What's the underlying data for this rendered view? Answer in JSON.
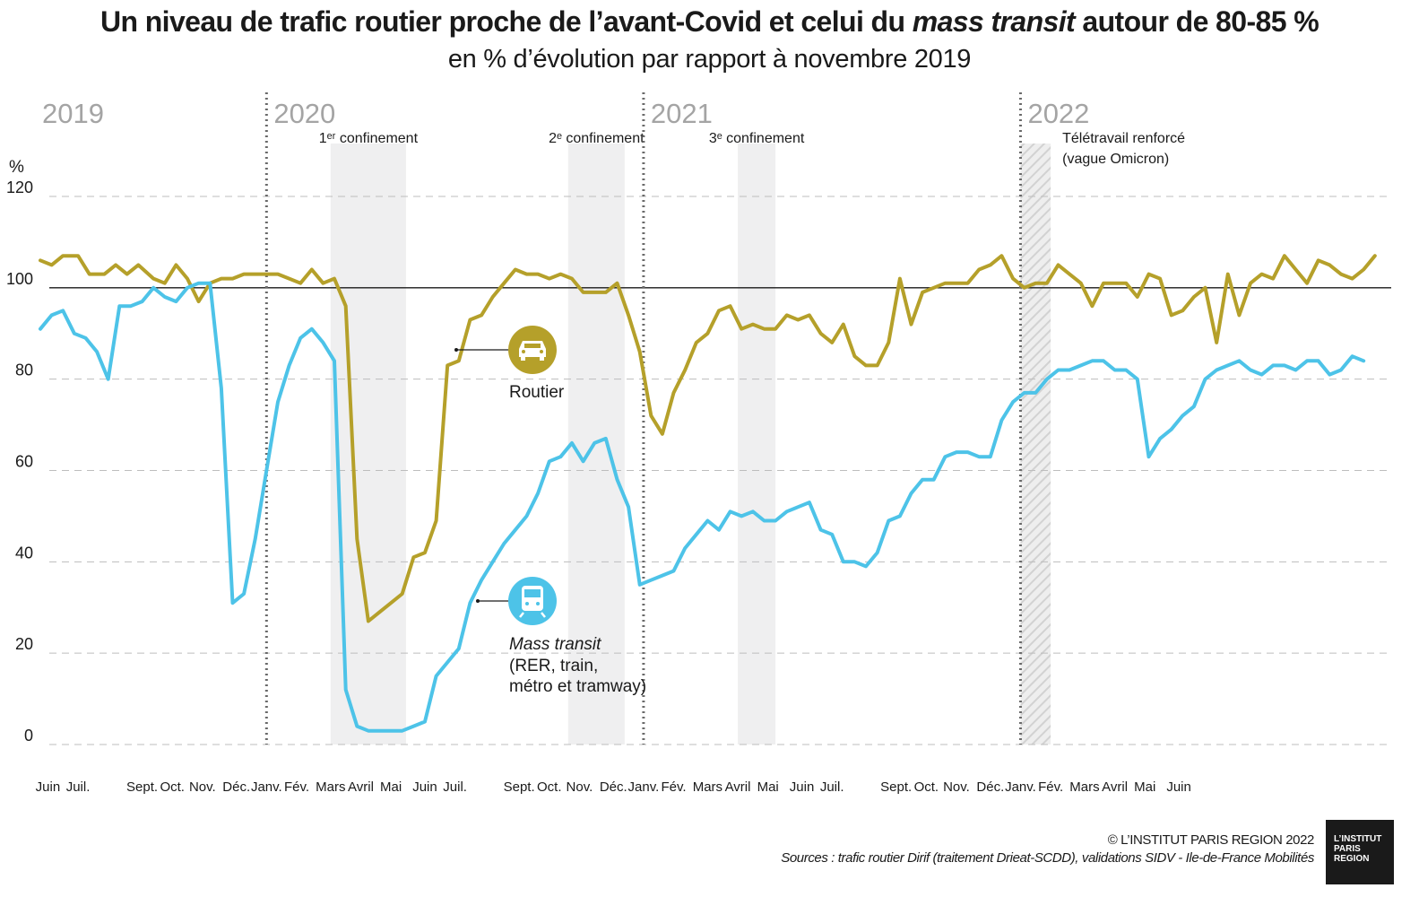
{
  "title": {
    "part1": "Un niveau de trafic routier proche de l’avant-Covid et celui du ",
    "italic": "mass transit",
    "part2": " autour de 80-85 %"
  },
  "subtitle": "en % d’évolution par rapport à novembre 2019",
  "unit_label": "%",
  "years": [
    "2019",
    "2020",
    "2021",
    "2022"
  ],
  "periods": [
    {
      "label": "1ᵉʳ confinement",
      "start": 2020.17,
      "end": 2020.37,
      "hatched": false
    },
    {
      "label": "2ᵉ confinement",
      "start": 2020.8,
      "end": 2020.95,
      "hatched": false
    },
    {
      "label": "3ᵉ confinement",
      "start": 2021.25,
      "end": 2021.35,
      "hatched": false
    },
    {
      "label": "Télétravail renforcé\n(vague Omicron)",
      "start": 2022.0,
      "end": 2022.08,
      "hatched": true
    }
  ],
  "legend": {
    "road": {
      "label": "Routier",
      "icon": "car-icon",
      "color": "#b5a02a"
    },
    "transit": {
      "label": "Mass transit",
      "sublabel1": "(RER, train,",
      "sublabel2": "métro et tramway)",
      "icon": "train-icon",
      "color": "#4dc3e8"
    }
  },
  "credit": "© L’INSTITUT PARIS REGION 2022",
  "sources": "Sources : trafic routier Dirif (traitement Drieat-SCDD), validations SIDV - Ile-de-France Mobilités",
  "logo": [
    "L’INSTITUT",
    "PARIS",
    "REGION"
  ],
  "chart_data": {
    "type": "line",
    "title": "Un niveau de trafic routier proche de l’avant-Covid et celui du mass transit autour de 80-85 %",
    "subtitle": "en % d’évolution par rapport à novembre 2019",
    "ylabel": "%",
    "ylim": [
      0,
      120
    ],
    "yticks": [
      0,
      20,
      40,
      60,
      80,
      100,
      120
    ],
    "reference_line": 100,
    "grid": "horizontal dashed",
    "month_ticks": [
      {
        "label": "Juin",
        "t": 2019.42
      },
      {
        "label": "Juil.",
        "t": 2019.5
      },
      {
        "label": "Sept.",
        "t": 2019.67
      },
      {
        "label": "Oct.",
        "t": 2019.75
      },
      {
        "label": "Nov.",
        "t": 2019.83
      },
      {
        "label": "Déc.",
        "t": 2019.92
      },
      {
        "label": "Janv.",
        "t": 2020.0
      },
      {
        "label": "Fév.",
        "t": 2020.08
      },
      {
        "label": "Mars",
        "t": 2020.17
      },
      {
        "label": "Avril",
        "t": 2020.25
      },
      {
        "label": "Mai",
        "t": 2020.33
      },
      {
        "label": "Juin",
        "t": 2020.42
      },
      {
        "label": "Juil.",
        "t": 2020.5
      },
      {
        "label": "Sept.",
        "t": 2020.67
      },
      {
        "label": "Oct.",
        "t": 2020.75
      },
      {
        "label": "Nov.",
        "t": 2020.83
      },
      {
        "label": "Déc.",
        "t": 2020.92
      },
      {
        "label": "Janv.",
        "t": 2021.0
      },
      {
        "label": "Fév.",
        "t": 2021.08
      },
      {
        "label": "Mars",
        "t": 2021.17
      },
      {
        "label": "Avril",
        "t": 2021.25
      },
      {
        "label": "Mai",
        "t": 2021.33
      },
      {
        "label": "Juin",
        "t": 2021.42
      },
      {
        "label": "Juil.",
        "t": 2021.5
      },
      {
        "label": "Sept.",
        "t": 2021.67
      },
      {
        "label": "Oct.",
        "t": 2021.75
      },
      {
        "label": "Nov.",
        "t": 2021.83
      },
      {
        "label": "Déc.",
        "t": 2021.92
      },
      {
        "label": "Janv.",
        "t": 2022.0
      },
      {
        "label": "Fév.",
        "t": 2022.08
      },
      {
        "label": "Mars",
        "t": 2022.17
      },
      {
        "label": "Avril",
        "t": 2022.25
      },
      {
        "label": "Mai",
        "t": 2022.33
      },
      {
        "label": "Juin",
        "t": 2022.42
      }
    ],
    "year_boundaries": [
      2020.0,
      2021.0,
      2022.0
    ],
    "series": [
      {
        "name": "Routier",
        "color": "#b5a02a",
        "points": [
          [
            2019.4,
            106
          ],
          [
            2019.43,
            105
          ],
          [
            2019.46,
            107
          ],
          [
            2019.5,
            107
          ],
          [
            2019.53,
            103
          ],
          [
            2019.57,
            103
          ],
          [
            2019.6,
            105
          ],
          [
            2019.63,
            103
          ],
          [
            2019.66,
            105
          ],
          [
            2019.7,
            102
          ],
          [
            2019.73,
            101
          ],
          [
            2019.76,
            105
          ],
          [
            2019.79,
            102
          ],
          [
            2019.82,
            97
          ],
          [
            2019.85,
            101
          ],
          [
            2019.88,
            102
          ],
          [
            2019.91,
            102
          ],
          [
            2019.94,
            103
          ],
          [
            2019.97,
            103
          ],
          [
            2020.0,
            103
          ],
          [
            2020.03,
            103
          ],
          [
            2020.06,
            102
          ],
          [
            2020.09,
            101
          ],
          [
            2020.12,
            104
          ],
          [
            2020.15,
            101
          ],
          [
            2020.18,
            102
          ],
          [
            2020.21,
            96
          ],
          [
            2020.24,
            45
          ],
          [
            2020.27,
            27
          ],
          [
            2020.3,
            29
          ],
          [
            2020.33,
            31
          ],
          [
            2020.36,
            33
          ],
          [
            2020.39,
            41
          ],
          [
            2020.42,
            42
          ],
          [
            2020.45,
            49
          ],
          [
            2020.48,
            83
          ],
          [
            2020.51,
            84
          ],
          [
            2020.54,
            93
          ],
          [
            2020.57,
            94
          ],
          [
            2020.6,
            98
          ],
          [
            2020.63,
            101
          ],
          [
            2020.66,
            104
          ],
          [
            2020.69,
            103
          ],
          [
            2020.72,
            103
          ],
          [
            2020.75,
            102
          ],
          [
            2020.78,
            103
          ],
          [
            2020.81,
            102
          ],
          [
            2020.84,
            99
          ],
          [
            2020.87,
            99
          ],
          [
            2020.9,
            99
          ],
          [
            2020.93,
            101
          ],
          [
            2020.96,
            94
          ],
          [
            2020.99,
            86
          ],
          [
            2021.02,
            72
          ],
          [
            2021.05,
            68
          ],
          [
            2021.08,
            77
          ],
          [
            2021.11,
            82
          ],
          [
            2021.14,
            88
          ],
          [
            2021.17,
            90
          ],
          [
            2021.2,
            95
          ],
          [
            2021.23,
            96
          ],
          [
            2021.26,
            91
          ],
          [
            2021.29,
            92
          ],
          [
            2021.32,
            91
          ],
          [
            2021.35,
            91
          ],
          [
            2021.38,
            94
          ],
          [
            2021.41,
            93
          ],
          [
            2021.44,
            94
          ],
          [
            2021.47,
            90
          ],
          [
            2021.5,
            88
          ],
          [
            2021.53,
            92
          ],
          [
            2021.56,
            85
          ],
          [
            2021.59,
            83
          ],
          [
            2021.62,
            83
          ],
          [
            2021.65,
            88
          ],
          [
            2021.68,
            102
          ],
          [
            2021.71,
            92
          ],
          [
            2021.74,
            99
          ],
          [
            2021.77,
            100
          ],
          [
            2021.8,
            101
          ],
          [
            2021.83,
            101
          ],
          [
            2021.86,
            101
          ],
          [
            2021.89,
            104
          ],
          [
            2021.92,
            105
          ],
          [
            2021.95,
            107
          ],
          [
            2021.98,
            102
          ],
          [
            2022.01,
            100
          ],
          [
            2022.04,
            101
          ],
          [
            2022.07,
            101
          ],
          [
            2022.1,
            105
          ],
          [
            2022.13,
            103
          ],
          [
            2022.16,
            101
          ],
          [
            2022.19,
            96
          ],
          [
            2022.22,
            101
          ],
          [
            2022.25,
            101
          ],
          [
            2022.28,
            101
          ],
          [
            2022.31,
            98
          ],
          [
            2022.34,
            103
          ],
          [
            2022.37,
            102
          ],
          [
            2022.4,
            94
          ],
          [
            2022.43,
            95
          ],
          [
            2022.46,
            98
          ],
          [
            2022.49,
            100
          ],
          [
            2022.52,
            88
          ],
          [
            2022.55,
            103
          ],
          [
            2022.58,
            94
          ],
          [
            2022.61,
            101
          ],
          [
            2022.64,
            103
          ],
          [
            2022.67,
            102
          ],
          [
            2022.7,
            107
          ],
          [
            2022.73,
            104
          ],
          [
            2022.76,
            101
          ],
          [
            2022.79,
            106
          ],
          [
            2022.82,
            105
          ],
          [
            2022.85,
            103
          ],
          [
            2022.88,
            102
          ],
          [
            2022.91,
            104
          ],
          [
            2022.94,
            107
          ]
        ]
      },
      {
        "name": "Mass transit",
        "color": "#4dc3e8",
        "points": [
          [
            2019.4,
            91
          ],
          [
            2019.43,
            94
          ],
          [
            2019.46,
            95
          ],
          [
            2019.49,
            90
          ],
          [
            2019.52,
            89
          ],
          [
            2019.55,
            86
          ],
          [
            2019.58,
            80
          ],
          [
            2019.61,
            96
          ],
          [
            2019.64,
            96
          ],
          [
            2019.67,
            97
          ],
          [
            2019.7,
            100
          ],
          [
            2019.73,
            98
          ],
          [
            2019.76,
            97
          ],
          [
            2019.79,
            100
          ],
          [
            2019.82,
            101
          ],
          [
            2019.85,
            101
          ],
          [
            2019.88,
            78
          ],
          [
            2019.91,
            31
          ],
          [
            2019.94,
            33
          ],
          [
            2019.97,
            45
          ],
          [
            2020.0,
            60
          ],
          [
            2020.03,
            75
          ],
          [
            2020.06,
            83
          ],
          [
            2020.09,
            89
          ],
          [
            2020.12,
            91
          ],
          [
            2020.15,
            88
          ],
          [
            2020.18,
            84
          ],
          [
            2020.21,
            12
          ],
          [
            2020.24,
            4
          ],
          [
            2020.27,
            3
          ],
          [
            2020.3,
            3
          ],
          [
            2020.33,
            3
          ],
          [
            2020.36,
            3
          ],
          [
            2020.39,
            4
          ],
          [
            2020.42,
            5
          ],
          [
            2020.45,
            15
          ],
          [
            2020.48,
            18
          ],
          [
            2020.51,
            21
          ],
          [
            2020.54,
            31
          ],
          [
            2020.57,
            36
          ],
          [
            2020.6,
            40
          ],
          [
            2020.63,
            44
          ],
          [
            2020.66,
            47
          ],
          [
            2020.69,
            50
          ],
          [
            2020.72,
            55
          ],
          [
            2020.75,
            62
          ],
          [
            2020.78,
            63
          ],
          [
            2020.81,
            66
          ],
          [
            2020.84,
            62
          ],
          [
            2020.87,
            66
          ],
          [
            2020.9,
            67
          ],
          [
            2020.93,
            58
          ],
          [
            2020.96,
            52
          ],
          [
            2020.99,
            35
          ],
          [
            2021.02,
            36
          ],
          [
            2021.05,
            37
          ],
          [
            2021.08,
            38
          ],
          [
            2021.11,
            43
          ],
          [
            2021.14,
            46
          ],
          [
            2021.17,
            49
          ],
          [
            2021.2,
            47
          ],
          [
            2021.23,
            51
          ],
          [
            2021.26,
            50
          ],
          [
            2021.29,
            51
          ],
          [
            2021.32,
            49
          ],
          [
            2021.35,
            49
          ],
          [
            2021.38,
            51
          ],
          [
            2021.41,
            52
          ],
          [
            2021.44,
            53
          ],
          [
            2021.47,
            47
          ],
          [
            2021.5,
            46
          ],
          [
            2021.53,
            40
          ],
          [
            2021.56,
            40
          ],
          [
            2021.59,
            39
          ],
          [
            2021.62,
            42
          ],
          [
            2021.65,
            49
          ],
          [
            2021.68,
            50
          ],
          [
            2021.71,
            55
          ],
          [
            2021.74,
            58
          ],
          [
            2021.77,
            58
          ],
          [
            2021.8,
            63
          ],
          [
            2021.83,
            64
          ],
          [
            2021.86,
            64
          ],
          [
            2021.89,
            63
          ],
          [
            2021.92,
            63
          ],
          [
            2021.95,
            71
          ],
          [
            2021.98,
            75
          ],
          [
            2022.01,
            77
          ],
          [
            2022.04,
            77
          ],
          [
            2022.07,
            80
          ],
          [
            2022.1,
            82
          ],
          [
            2022.13,
            82
          ],
          [
            2022.16,
            83
          ],
          [
            2022.19,
            84
          ],
          [
            2022.22,
            84
          ],
          [
            2022.25,
            82
          ],
          [
            2022.28,
            82
          ],
          [
            2022.31,
            80
          ],
          [
            2022.34,
            63
          ],
          [
            2022.37,
            67
          ],
          [
            2022.4,
            69
          ],
          [
            2022.43,
            72
          ],
          [
            2022.46,
            74
          ],
          [
            2022.49,
            80
          ],
          [
            2022.52,
            82
          ],
          [
            2022.55,
            83
          ],
          [
            2022.58,
            84
          ],
          [
            2022.61,
            82
          ],
          [
            2022.64,
            81
          ],
          [
            2022.67,
            83
          ],
          [
            2022.7,
            83
          ],
          [
            2022.73,
            82
          ],
          [
            2022.76,
            84
          ],
          [
            2022.79,
            84
          ],
          [
            2022.82,
            81
          ],
          [
            2022.85,
            82
          ],
          [
            2022.88,
            85
          ],
          [
            2022.91,
            84
          ]
        ]
      }
    ]
  }
}
